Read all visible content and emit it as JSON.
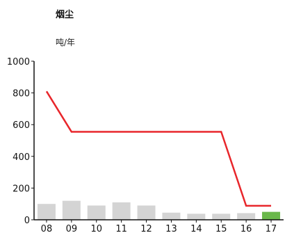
{
  "chart_data": {
    "type": "bar",
    "title": "烟尘",
    "ylabel": "吨/年",
    "categories": [
      "08",
      "09",
      "10",
      "11",
      "12",
      "13",
      "14",
      "15",
      "16",
      "17"
    ],
    "ylim": [
      0,
      1000
    ],
    "yticks": [
      0,
      200,
      400,
      600,
      800,
      1000
    ],
    "series": [
      {
        "type": "bar",
        "values": [
          100,
          120,
          90,
          110,
          90,
          45,
          38,
          38,
          42,
          50
        ]
      },
      {
        "type": "line",
        "values": [
          810,
          555,
          555,
          555,
          555,
          555,
          555,
          555,
          88,
          88
        ]
      }
    ],
    "colors": {
      "bar": "#d4d4d4",
      "highlight_bar": "#6ab84a",
      "line": "#e8262b",
      "axis": "#111111"
    },
    "highlight_index": 9
  }
}
